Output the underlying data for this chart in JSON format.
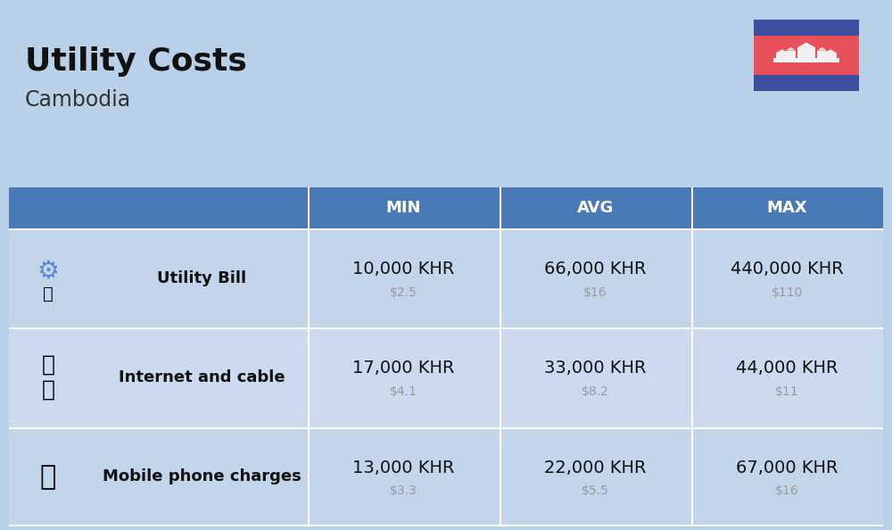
{
  "title": "Utility Costs",
  "subtitle": "Cambodia",
  "background_color": "#b8d0e8",
  "header_bg_color": "#4a7ab5",
  "header_text_color": "#ffffff",
  "row_bg_color_odd": "#c2d5ea",
  "row_bg_color_even": "#ccdaf0",
  "columns": [
    "MIN",
    "AVG",
    "MAX"
  ],
  "rows": [
    {
      "label": "Utility Bill",
      "icon": "utility",
      "min_khr": "10,000 KHR",
      "min_usd": "$2.5",
      "avg_khr": "66,000 KHR",
      "avg_usd": "$16",
      "max_khr": "440,000 KHR",
      "max_usd": "$110"
    },
    {
      "label": "Internet and cable",
      "icon": "internet",
      "min_khr": "17,000 KHR",
      "min_usd": "$4.1",
      "avg_khr": "33,000 KHR",
      "avg_usd": "$8.2",
      "max_khr": "44,000 KHR",
      "max_usd": "$11"
    },
    {
      "label": "Mobile phone charges",
      "icon": "mobile",
      "min_khr": "13,000 KHR",
      "min_usd": "$3.3",
      "avg_khr": "22,000 KHR",
      "avg_usd": "$5.5",
      "max_khr": "67,000 KHR",
      "max_usd": "$16"
    }
  ],
  "flag_blue": "#3d4fa0",
  "flag_red": "#e8505a",
  "flag_white": "#f0f0f0",
  "title_fontsize": 26,
  "subtitle_fontsize": 17,
  "header_fontsize": 13,
  "label_fontsize": 13,
  "khr_fontsize": 14,
  "usd_fontsize": 10,
  "usd_color": "#999999",
  "text_color": "#111111",
  "white": "#ffffff",
  "col_sep_color": "#ffffff",
  "row_sep_color": "#ffffff"
}
